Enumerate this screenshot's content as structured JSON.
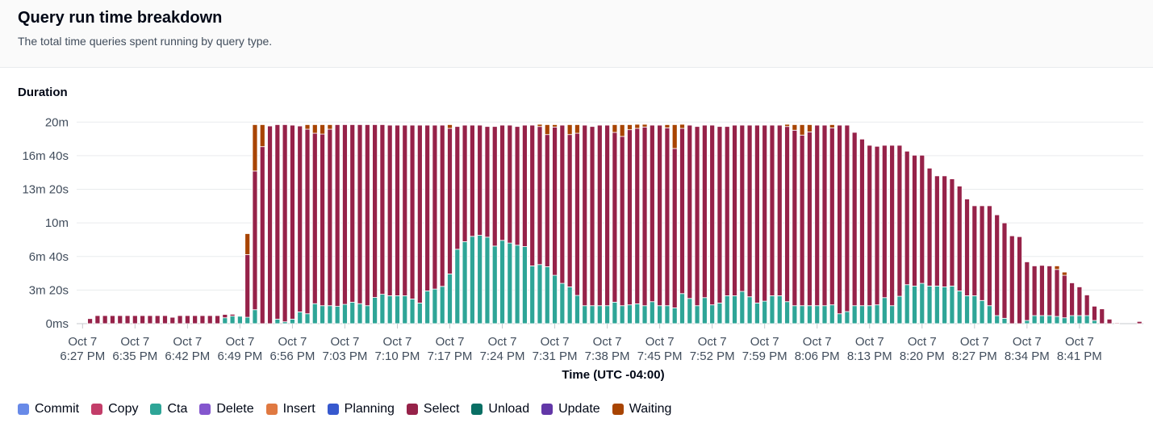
{
  "header": {
    "title": "Query run time breakdown",
    "subtitle": "The total time queries spent running by query type."
  },
  "chart_data": {
    "type": "bar",
    "stacked": true,
    "ylabel": "Duration",
    "xlabel": "Time (UTC -04:00)",
    "y_unit": "seconds",
    "ylim": [
      0,
      1200
    ],
    "grid": true,
    "legend_placement": "bottom-left",
    "y_ticks": [
      {
        "value": 0,
        "label": "0ms"
      },
      {
        "value": 200,
        "label": "3m 20s"
      },
      {
        "value": 400,
        "label": "6m 40s"
      },
      {
        "value": 600,
        "label": "10m"
      },
      {
        "value": 800,
        "label": "13m 20s"
      },
      {
        "value": 1000,
        "label": "16m 40s"
      },
      {
        "value": 1200,
        "label": "20m"
      }
    ],
    "x_ticks": [
      {
        "bar_index": -1,
        "date": "Oct 7",
        "time": "6:27 PM"
      },
      {
        "bar_index": 6,
        "date": "Oct 7",
        "time": "6:35 PM"
      },
      {
        "bar_index": 13,
        "date": "Oct 7",
        "time": "6:42 PM"
      },
      {
        "bar_index": 20,
        "date": "Oct 7",
        "time": "6:49 PM"
      },
      {
        "bar_index": 27,
        "date": "Oct 7",
        "time": "6:56 PM"
      },
      {
        "bar_index": 34,
        "date": "Oct 7",
        "time": "7:03 PM"
      },
      {
        "bar_index": 41,
        "date": "Oct 7",
        "time": "7:10 PM"
      },
      {
        "bar_index": 48,
        "date": "Oct 7",
        "time": "7:17 PM"
      },
      {
        "bar_index": 55,
        "date": "Oct 7",
        "time": "7:24 PM"
      },
      {
        "bar_index": 62,
        "date": "Oct 7",
        "time": "7:31 PM"
      },
      {
        "bar_index": 69,
        "date": "Oct 7",
        "time": "7:38 PM"
      },
      {
        "bar_index": 76,
        "date": "Oct 7",
        "time": "7:45 PM"
      },
      {
        "bar_index": 83,
        "date": "Oct 7",
        "time": "7:52 PM"
      },
      {
        "bar_index": 90,
        "date": "Oct 7",
        "time": "7:59 PM"
      },
      {
        "bar_index": 97,
        "date": "Oct 7",
        "time": "8:06 PM"
      },
      {
        "bar_index": 104,
        "date": "Oct 7",
        "time": "8:13 PM"
      },
      {
        "bar_index": 111,
        "date": "Oct 7",
        "time": "8:20 PM"
      },
      {
        "bar_index": 118,
        "date": "Oct 7",
        "time": "8:27 PM"
      },
      {
        "bar_index": 125,
        "date": "Oct 7",
        "time": "8:34 PM"
      },
      {
        "bar_index": 132,
        "date": "Oct 7",
        "time": "8:41 PM"
      }
    ],
    "legend": [
      {
        "name": "Commit",
        "color": "#688ae8"
      },
      {
        "name": "Copy",
        "color": "#c33d69"
      },
      {
        "name": "Cta",
        "color": "#2ea597"
      },
      {
        "name": "Delete",
        "color": "#8456ce"
      },
      {
        "name": "Insert",
        "color": "#e07941"
      },
      {
        "name": "Planning",
        "color": "#3759ce"
      },
      {
        "name": "Select",
        "color": "#962249"
      },
      {
        "name": "Unload",
        "color": "#096f64"
      },
      {
        "name": "Update",
        "color": "#6237a7"
      },
      {
        "name": "Waiting",
        "color": "#a84401"
      }
    ],
    "series": [
      {
        "name": "Cta",
        "color": "#2ea597",
        "values": [
          0,
          0,
          0,
          0,
          0,
          0,
          0,
          0,
          0,
          0,
          0,
          0,
          0,
          0,
          0,
          0,
          0,
          0,
          35,
          45,
          45,
          38,
          83,
          0,
          0,
          27,
          11,
          27,
          70,
          59,
          119,
          107,
          107,
          103,
          115,
          128,
          119,
          107,
          156,
          175,
          166,
          166,
          166,
          147,
          123,
          195,
          206,
          222,
          296,
          443,
          488,
          520,
          526,
          515,
          462,
          496,
          480,
          467,
          459,
          344,
          352,
          339,
          288,
          240,
          219,
          168,
          107,
          107,
          107,
          107,
          128,
          107,
          112,
          118,
          107,
          131,
          107,
          107,
          94,
          179,
          150,
          107,
          155,
          112,
          123,
          166,
          166,
          192,
          160,
          123,
          134,
          166,
          166,
          131,
          107,
          107,
          107,
          107,
          107,
          112,
          59,
          72,
          107,
          107,
          107,
          112,
          155,
          107,
          163,
          232,
          224,
          240,
          224,
          224,
          219,
          224,
          195,
          166,
          166,
          138,
          107,
          48,
          32,
          0,
          0,
          19,
          48,
          48,
          48,
          43,
          35,
          48,
          48,
          48,
          19,
          0,
          0,
          0,
          0,
          0,
          0
        ]
      },
      {
        "name": "Select",
        "color": "#962249",
        "values": [
          30,
          48,
          48,
          48,
          48,
          48,
          48,
          48,
          48,
          48,
          48,
          38,
          48,
          48,
          48,
          48,
          48,
          48,
          20,
          11,
          3,
          373,
          826,
          1054,
          1177,
          1158,
          1174,
          1155,
          1107,
          1099,
          1015,
          1022,
          1051,
          1082,
          1070,
          1057,
          1066,
          1078,
          1029,
          1010,
          1016,
          1016,
          1016,
          1035,
          1059,
          987,
          976,
          960,
          867,
          731,
          694,
          662,
          656,
          659,
          712,
          686,
          702,
          707,
          723,
          838,
          822,
          787,
          883,
          942,
          907,
          966,
          1075,
          1067,
          1075,
          1075,
          1011,
          1008,
          1043,
          1045,
          1064,
          1051,
          1075,
          1059,
          949,
          984,
          1032,
          1067,
          1027,
          1070,
          1051,
          1008,
          1016,
          990,
          1022,
          1059,
          1048,
          1016,
          1016,
          1043,
          1045,
          1016,
          1035,
          1075,
          1075,
          1054,
          1123,
          1110,
          1032,
          992,
          955,
          944,
          907,
          955,
          899,
          795,
          779,
          763,
          702,
          656,
          661,
          638,
          624,
          576,
          536,
          564,
          595,
          600,
          568,
          523,
          518,
          349,
          296,
          299,
          296,
          280,
          253,
          195,
          171,
          123,
          85,
          88,
          27,
          5,
          0,
          0,
          13
        ]
      },
      {
        "name": "Waiting",
        "color": "#a84401",
        "values": [
          0,
          0,
          0,
          0,
          0,
          0,
          0,
          0,
          0,
          0,
          0,
          0,
          0,
          0,
          0,
          0,
          0,
          0,
          0,
          0,
          0,
          125,
          276,
          131,
          0,
          0,
          0,
          0,
          0,
          27,
          51,
          56,
          27,
          0,
          0,
          0,
          0,
          0,
          0,
          0,
          0,
          0,
          0,
          0,
          0,
          0,
          0,
          0,
          22,
          0,
          0,
          0,
          0,
          0,
          0,
          0,
          0,
          0,
          0,
          0,
          13,
          59,
          14,
          0,
          59,
          51,
          0,
          0,
          0,
          0,
          46,
          70,
          30,
          24,
          16,
          0,
          0,
          19,
          142,
          24,
          0,
          0,
          0,
          0,
          0,
          0,
          0,
          0,
          0,
          0,
          0,
          0,
          0,
          13,
          33,
          62,
          43,
          0,
          0,
          19,
          0,
          0,
          0,
          0,
          0,
          0,
          0,
          0,
          0,
          0,
          0,
          0,
          0,
          0,
          0,
          0,
          0,
          0,
          0,
          0,
          0,
          0,
          0,
          0,
          0,
          0,
          0,
          0,
          0,
          21,
          19,
          0,
          0,
          0,
          0,
          0,
          0,
          0,
          0,
          0,
          0
        ]
      }
    ]
  }
}
